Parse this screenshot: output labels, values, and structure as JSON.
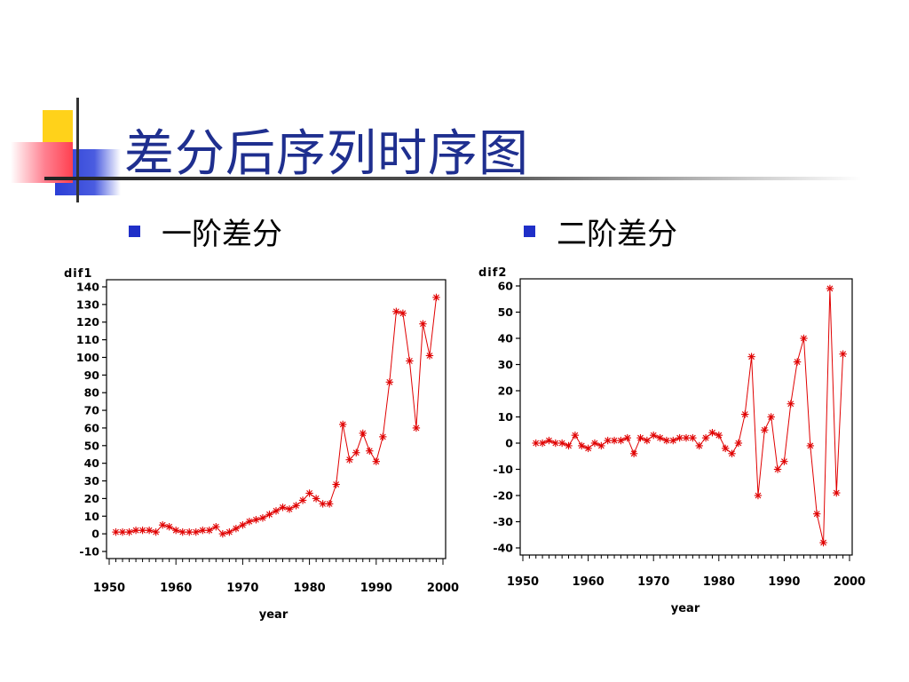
{
  "title": "差分后序列时序图",
  "bullets": [
    {
      "label": "一阶差分"
    },
    {
      "label": "二阶差分"
    }
  ],
  "colors": {
    "title": "#1f2f8f",
    "bullet": "#1f2fc8",
    "series": "#e00000",
    "deco_yellow": "#ffd21a",
    "deco_blue": "#2b3fd6",
    "deco_red": "#ff4050"
  },
  "chart_data": [
    {
      "type": "line",
      "title": "",
      "xlabel": "year",
      "ylabel": "dif1",
      "xlim": [
        1950,
        2000
      ],
      "ylim": [
        -10,
        140
      ],
      "xticks": [
        1950,
        1960,
        1970,
        1980,
        1990,
        2000
      ],
      "yticks": [
        -10,
        0,
        10,
        20,
        30,
        40,
        50,
        60,
        70,
        80,
        90,
        100,
        110,
        120,
        130,
        140
      ],
      "marker": "star",
      "series": [
        {
          "x": [
            1951,
            1952,
            1953,
            1954,
            1955,
            1956,
            1957,
            1958,
            1959,
            1960,
            1961,
            1962,
            1963,
            1964,
            1965,
            1966,
            1967,
            1968,
            1969,
            1970,
            1971,
            1972,
            1973,
            1974,
            1975,
            1976,
            1977,
            1978,
            1979,
            1980,
            1981,
            1982,
            1983,
            1984,
            1985,
            1986,
            1987,
            1988,
            1989,
            1990,
            1991,
            1992,
            1993,
            1994,
            1995,
            1996,
            1997,
            1998,
            1999
          ],
          "values": [
            1,
            1,
            1,
            2,
            2,
            2,
            1,
            5,
            4,
            2,
            1,
            1,
            1,
            2,
            2,
            4,
            0,
            1,
            3,
            5,
            7,
            8,
            9,
            11,
            13,
            15,
            14,
            16,
            19,
            23,
            20,
            17,
            17,
            28,
            62,
            42,
            46,
            57,
            47,
            41,
            55,
            86,
            126,
            125,
            98,
            60,
            119,
            101,
            134
          ]
        }
      ]
    },
    {
      "type": "line",
      "title": "",
      "xlabel": "year",
      "ylabel": "dif2",
      "xlim": [
        1950,
        2000
      ],
      "ylim": [
        -40,
        60
      ],
      "xticks": [
        1950,
        1960,
        1970,
        1980,
        1990,
        2000
      ],
      "yticks": [
        -40,
        -30,
        -20,
        -10,
        0,
        10,
        20,
        30,
        40,
        50,
        60
      ],
      "marker": "star",
      "series": [
        {
          "x": [
            1952,
            1953,
            1954,
            1955,
            1956,
            1957,
            1958,
            1959,
            1960,
            1961,
            1962,
            1963,
            1964,
            1965,
            1966,
            1967,
            1968,
            1969,
            1970,
            1971,
            1972,
            1973,
            1974,
            1975,
            1976,
            1977,
            1978,
            1979,
            1980,
            1981,
            1982,
            1983,
            1984,
            1985,
            1986,
            1987,
            1988,
            1989,
            1990,
            1991,
            1992,
            1993,
            1994,
            1995,
            1996,
            1997,
            1998,
            1999
          ],
          "values": [
            0,
            0,
            1,
            0,
            0,
            -1,
            3,
            -1,
            -2,
            0,
            -1,
            1,
            1,
            1,
            2,
            -4,
            2,
            1,
            3,
            2,
            1,
            1,
            2,
            2,
            2,
            -1,
            2,
            4,
            3,
            -2,
            -4,
            0,
            11,
            33,
            -20,
            5,
            10,
            -10,
            -7,
            15,
            31,
            40,
            -1,
            -27,
            -38,
            59,
            -19,
            34
          ]
        }
      ]
    }
  ]
}
